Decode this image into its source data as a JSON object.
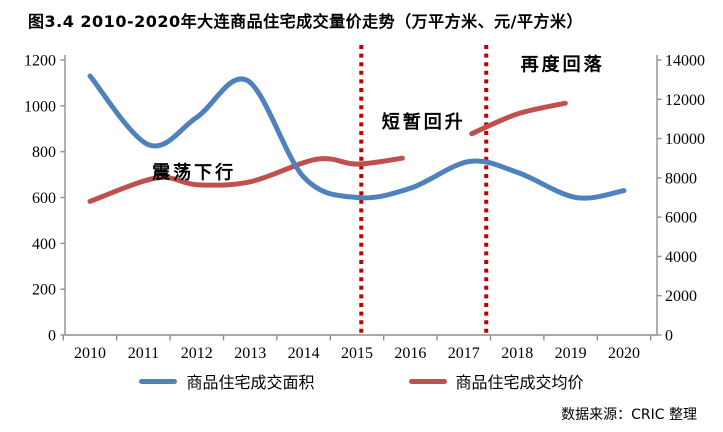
{
  "title": "图3.4  2010-2020年大连商品住宅成交量价走势（万平方米、元/平方米）",
  "source_note": "数据来源：CRIC 整理",
  "colors": {
    "area_line": "#4F81BD",
    "price_line": "#C0504D",
    "ref_line": "#C00000",
    "axis": "#8E8E8E",
    "text": "#000000"
  },
  "legend": [
    {
      "label": "商品住宅成交面积",
      "color": "#4F81BD"
    },
    {
      "label": "商品住宅成交均价",
      "color": "#C0504D"
    }
  ],
  "chart_data": {
    "type": "line",
    "title": "图3.4 2010-2020年大连商品住宅成交量价走势（万平方米、元/平方米）",
    "x_ticks": [
      "2010",
      "2011",
      "2012",
      "2013",
      "2014",
      "2015",
      "2016",
      "2017",
      "2018",
      "2019",
      "2020"
    ],
    "left_axis": {
      "min": 0,
      "max": 1200,
      "step": 200,
      "ticks": [
        "0",
        "200",
        "400",
        "600",
        "800",
        "1000",
        "1200"
      ]
    },
    "right_axis": {
      "min": 0,
      "max": 14000,
      "step": 2000,
      "ticks": [
        "0",
        "2000",
        "4000",
        "6000",
        "8000",
        "10000",
        "12000",
        "14000"
      ]
    },
    "grid": false,
    "legend_position": "bottom",
    "series": [
      {
        "name": "商品住宅成交面积",
        "axis": "left",
        "color": "#4F81BD",
        "style": "smooth",
        "points": [
          [
            2010,
            1130
          ],
          [
            2011.1,
            830
          ],
          [
            2012,
            950
          ],
          [
            2012.95,
            1110
          ],
          [
            2014,
            690
          ],
          [
            2015,
            600
          ],
          [
            2016,
            640
          ],
          [
            2017.1,
            757
          ],
          [
            2018,
            710
          ],
          [
            2019.1,
            600
          ],
          [
            2020,
            630
          ]
        ]
      },
      {
        "name": "商品住宅成交均价",
        "axis": "right",
        "color": "#C0504D",
        "style": "smooth",
        "segments": [
          [
            [
              2010,
              6800
            ],
            [
              2011.25,
              8000
            ],
            [
              2012,
              7650
            ],
            [
              2013,
              7800
            ],
            [
              2014.25,
              8950
            ],
            [
              2015,
              8700
            ],
            [
              2015.85,
              9000
            ]
          ],
          [
            [
              2017.15,
              10250
            ],
            [
              2018,
              11250
            ],
            [
              2018.9,
              11800
            ]
          ]
        ]
      }
    ],
    "annotations": [
      {
        "text": "震荡下行",
        "x": 2011.95,
        "y_left": 710
      },
      {
        "text": "短暂回升",
        "x": 2016.25,
        "y_left": 930
      },
      {
        "text": "再度回落",
        "x": 2018.85,
        "y_left": 1180
      }
    ],
    "ref_lines": [
      {
        "x": 2015.08
      },
      {
        "x": 2017.42
      }
    ]
  }
}
